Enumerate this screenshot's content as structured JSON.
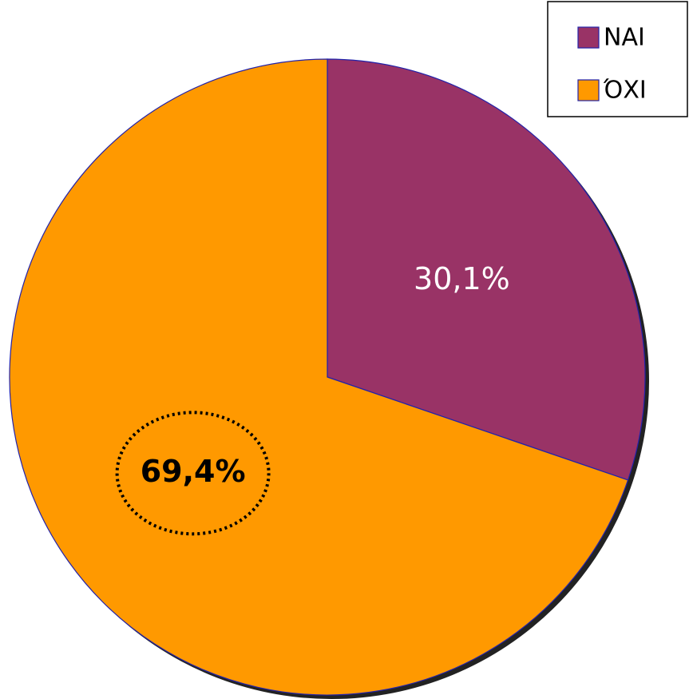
{
  "chart_data": {
    "type": "pie",
    "categories": [
      "NAI",
      "ΌΧΙ"
    ],
    "values": [
      30.1,
      69.4
    ],
    "value_labels": [
      "30,1%",
      "69,4%"
    ],
    "colors": [
      "#993366",
      "#ff9900"
    ],
    "legend": "top-right"
  }
}
